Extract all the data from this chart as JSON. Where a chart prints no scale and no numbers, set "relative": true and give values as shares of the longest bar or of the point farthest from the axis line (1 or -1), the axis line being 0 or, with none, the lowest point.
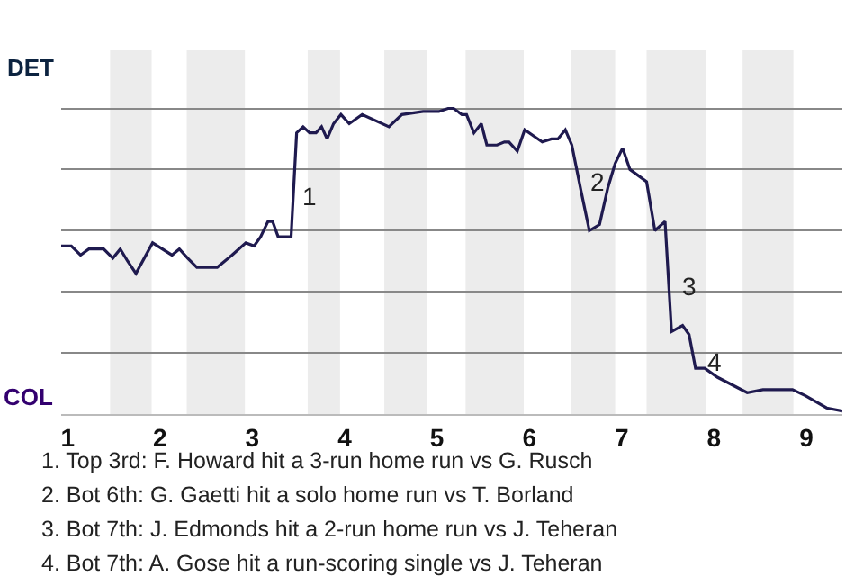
{
  "chart_data": {
    "type": "line",
    "relative": true,
    "x": [
      0.93,
      1.04,
      1.14,
      1.23,
      1.39,
      1.49,
      1.57,
      1.65,
      1.74,
      1.92,
      2.13,
      2.21,
      2.3,
      2.4,
      2.62,
      2.78,
      2.93,
      3.02,
      3.09,
      3.17,
      3.22,
      3.28,
      3.42,
      3.48,
      3.55,
      3.62,
      3.69,
      3.75,
      3.81,
      3.88,
      3.96,
      4.05,
      4.19,
      4.48,
      4.62,
      4.85,
      5.02,
      5.12,
      5.18,
      5.27,
      5.32,
      5.4,
      5.48,
      5.54,
      5.65,
      5.73,
      5.78,
      5.87,
      5.95,
      6.14,
      6.24,
      6.31,
      6.39,
      6.46,
      6.56,
      6.65,
      6.76,
      6.85,
      6.93,
      7.01,
      7.09,
      7.27,
      7.36,
      7.47,
      7.54,
      7.66,
      7.73,
      7.8,
      7.9,
      8.04,
      8.36,
      8.53,
      8.85,
      8.99,
      9.22,
      9.39
    ],
    "series": [
      {
        "color": "#1f1a4f",
        "values": [
          0.55,
          0.55,
          0.52,
          0.54,
          0.54,
          0.51,
          0.54,
          0.5,
          0.46,
          0.56,
          0.52,
          0.54,
          0.51,
          0.48,
          0.48,
          0.52,
          0.56,
          0.55,
          0.58,
          0.63,
          0.63,
          0.58,
          0.58,
          0.92,
          0.94,
          0.92,
          0.92,
          0.94,
          0.9,
          0.95,
          0.98,
          0.95,
          0.98,
          0.94,
          0.98,
          0.99,
          0.99,
          1,
          1,
          0.98,
          0.98,
          0.92,
          0.95,
          0.88,
          0.88,
          0.89,
          0.89,
          0.86,
          0.93,
          0.89,
          0.9,
          0.9,
          0.93,
          0.88,
          0.73,
          0.6,
          0.62,
          0.74,
          0.82,
          0.87,
          0.8,
          0.76,
          0.6,
          0.63,
          0.27,
          0.29,
          0.26,
          0.15,
          0.15,
          0.12,
          0.07,
          0.08,
          0.08,
          0.06,
          0.02,
          0.01
        ]
      }
    ],
    "xlim": [
      0.93,
      9.39
    ],
    "xticks": [
      1,
      2,
      3,
      4,
      5,
      6,
      7,
      8,
      9
    ],
    "grid": "y",
    "marker": "none",
    "line_style": "solid",
    "bands": [
      {
        "axis": "x",
        "from": 1.46,
        "to": 1.91,
        "color": "#ececec"
      },
      {
        "axis": "x",
        "from": 2.29,
        "to": 2.92,
        "color": "#ececec"
      },
      {
        "axis": "x",
        "from": 3.6,
        "to": 3.95,
        "color": "#ececec"
      },
      {
        "axis": "x",
        "from": 4.43,
        "to": 4.89,
        "color": "#ececec"
      },
      {
        "axis": "x",
        "from": 5.31,
        "to": 5.94,
        "color": "#ececec"
      },
      {
        "axis": "x",
        "from": 6.45,
        "to": 6.93,
        "color": "#ececec"
      },
      {
        "axis": "x",
        "from": 7.27,
        "to": 7.91,
        "color": "#ececec"
      },
      {
        "axis": "x",
        "from": 8.31,
        "to": 8.86,
        "color": "#ececec"
      }
    ],
    "annotations": [
      "DET",
      "COL",
      {
        "text": "1",
        "x": 3.51,
        "y": 0.71
      },
      {
        "text": "2",
        "x": 6.62,
        "y": 0.76
      },
      {
        "text": "3",
        "x": 7.61,
        "y": 0.42
      },
      {
        "text": "4",
        "x": 7.88,
        "y": 0.17
      },
      "1. Top 3rd: F. Howard hit a 3-run home run vs G. Rusch",
      "2. Bot 6th: G. Gaetti hit a solo home run vs T. Borland",
      "3. Bot 7th: J. Edmonds hit a 2-run home run vs J. Teheran",
      "4. Bot 7th: A. Gose hit a run-scoring single vs J. Teheran"
    ]
  }
}
